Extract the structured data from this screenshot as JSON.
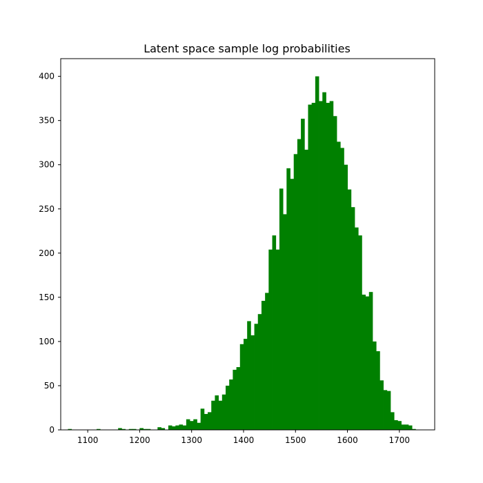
{
  "chart_data": {
    "type": "bar",
    "title": "Latent space sample log probabilities",
    "xlabel": "",
    "ylabel": "",
    "xlim": [
      1048,
      1768
    ],
    "ylim": [
      0,
      420
    ],
    "xticks": [
      1100,
      1200,
      1300,
      1400,
      1500,
      1600,
      1700
    ],
    "yticks": [
      0,
      50,
      100,
      150,
      200,
      250,
      300,
      350,
      400
    ],
    "bar_color": "#008000",
    "bin_width": 6.9,
    "bin_starts": [
      1055.0,
      1061.9,
      1068.8,
      1075.7,
      1082.6,
      1089.5,
      1096.4,
      1103.3,
      1110.2,
      1117.1,
      1124.0,
      1130.9,
      1137.8,
      1144.7,
      1151.6,
      1158.5,
      1165.4,
      1172.3,
      1179.2,
      1186.1,
      1193.0,
      1199.9,
      1206.8,
      1213.7,
      1220.6,
      1227.5,
      1234.4,
      1241.3,
      1248.2,
      1255.1,
      1262.0,
      1268.9,
      1275.8,
      1282.7,
      1289.6,
      1296.5,
      1303.4,
      1310.3,
      1317.2,
      1324.1,
      1331.0,
      1337.9,
      1344.8,
      1351.7,
      1358.6,
      1365.5,
      1372.4,
      1379.3,
      1386.2,
      1393.1,
      1400.0,
      1406.9,
      1413.8,
      1420.7,
      1427.6,
      1434.5,
      1441.4,
      1448.3,
      1455.2,
      1462.1,
      1469.0,
      1475.9,
      1482.8,
      1489.7,
      1496.6,
      1503.5,
      1510.4,
      1517.3,
      1524.2,
      1531.1,
      1538.0,
      1544.9,
      1551.8,
      1558.7,
      1565.6,
      1572.5,
      1579.4,
      1586.3,
      1593.2,
      1600.1,
      1607.0,
      1613.9,
      1620.8,
      1627.7,
      1634.6,
      1641.5,
      1648.4,
      1655.3,
      1662.2,
      1669.1,
      1676.0,
      1682.9,
      1689.8,
      1696.7,
      1703.6,
      1710.5,
      1717.4,
      1724.3
    ],
    "values": [
      0,
      1,
      0,
      0,
      0,
      0,
      0,
      0,
      0,
      1,
      0,
      0,
      0,
      0,
      0,
      2,
      1,
      0,
      1,
      1,
      0,
      2,
      1,
      1,
      0,
      0,
      3,
      2,
      0,
      5,
      4,
      5,
      6,
      5,
      12,
      10,
      12,
      8,
      24,
      18,
      20,
      33,
      39,
      33,
      40,
      50,
      57,
      68,
      71,
      97,
      103,
      123,
      107,
      120,
      131,
      146,
      155,
      204,
      220,
      204,
      273,
      244,
      296,
      284,
      312,
      329,
      352,
      317,
      368,
      370,
      400,
      372,
      382,
      370,
      372,
      355,
      326,
      319,
      300,
      272,
      252,
      229,
      220,
      153,
      151,
      156,
      100,
      89,
      56,
      45,
      44,
      20,
      11,
      10,
      6,
      6,
      5,
      1
    ]
  }
}
